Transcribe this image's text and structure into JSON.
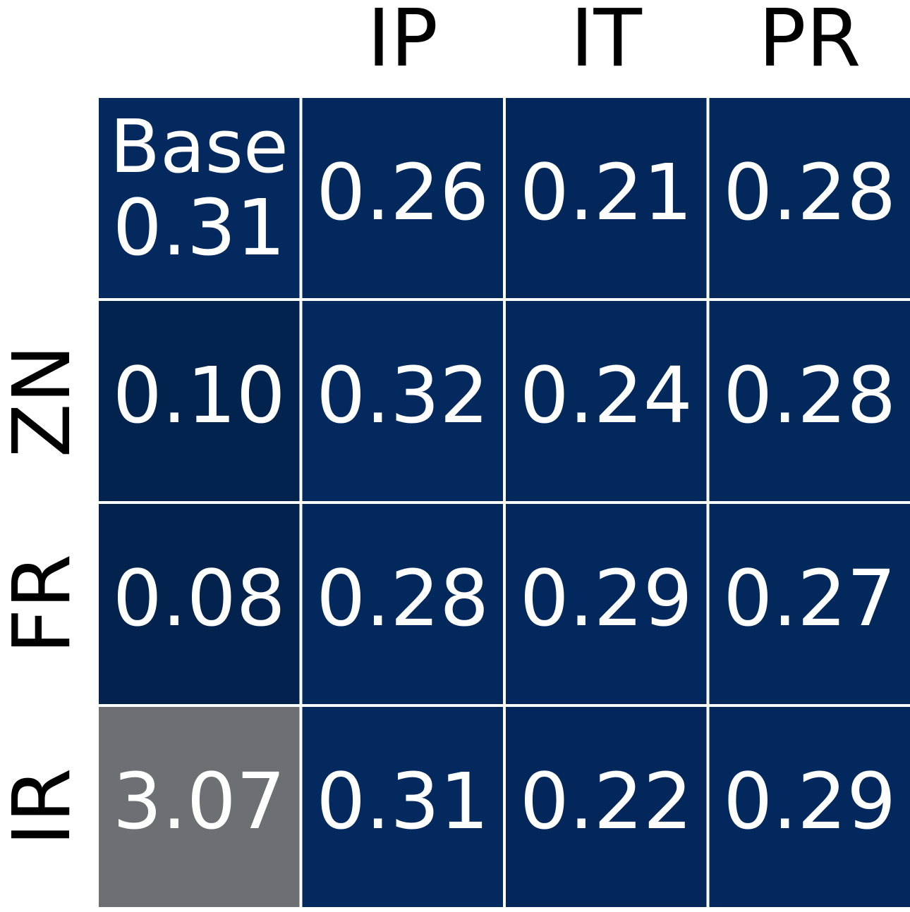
{
  "chart_data": {
    "type": "heatmap",
    "x_categories": [
      null,
      "IP",
      "IT",
      "PR"
    ],
    "y_categories": [
      null,
      "ZN",
      "FR",
      "IR"
    ],
    "annotation": "Base",
    "values": [
      [
        0.31,
        0.26,
        0.21,
        0.28
      ],
      [
        0.1,
        0.32,
        0.24,
        0.28
      ],
      [
        0.08,
        0.28,
        0.29,
        0.27
      ],
      [
        3.07,
        0.31,
        0.22,
        0.29
      ]
    ],
    "value_labels": [
      [
        "0.31",
        "0.26",
        "0.21",
        "0.28"
      ],
      [
        "0.10",
        "0.32",
        "0.24",
        "0.28"
      ],
      [
        "0.08",
        "0.28",
        "0.29",
        "0.27"
      ],
      [
        "3.07",
        "0.31",
        "0.22",
        "0.29"
      ]
    ],
    "colors": [
      [
        "#03295e",
        "#03285c",
        "#03275a",
        "#03285c"
      ],
      [
        "#03234f",
        "#03295e",
        "#03285b",
        "#03285c"
      ],
      [
        "#03224d",
        "#03285c",
        "#03285d",
        "#03285c"
      ],
      [
        "#6e6f73",
        "#03295e",
        "#03275a",
        "#03285d"
      ]
    ]
  }
}
